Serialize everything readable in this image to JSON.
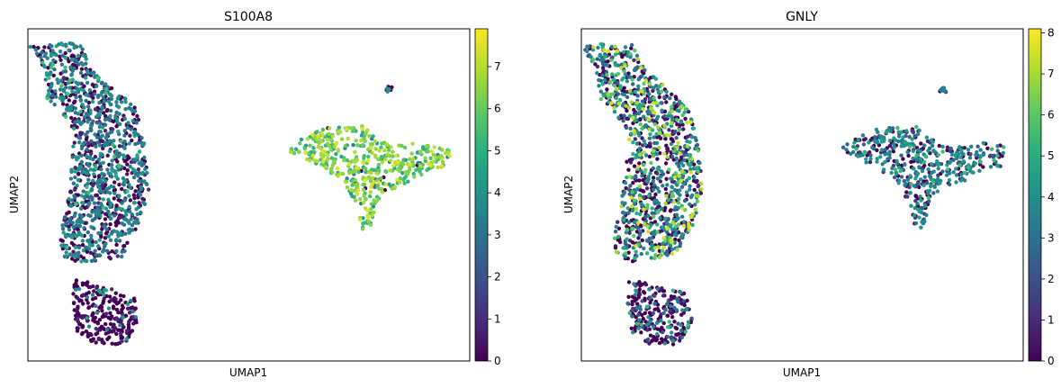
{
  "chart_data": [
    {
      "type": "scatter",
      "title": "S100A8",
      "xlabel": "UMAP1",
      "ylabel": "UMAP2",
      "colormap": "viridis",
      "color_range": [
        0,
        7.9
      ],
      "colorbar_ticks": [
        "0",
        "1",
        "2",
        "3",
        "4",
        "5",
        "6",
        "7"
      ],
      "grid": false,
      "clusters": [
        {
          "name": "top-left",
          "values": [
            0,
            0.5,
            1,
            3,
            3.5,
            4,
            4.5,
            5.5
          ],
          "weights": [
            30,
            8,
            5,
            20,
            20,
            10,
            5,
            2
          ]
        },
        {
          "name": "bottom-left",
          "values": [
            0,
            0.5,
            1,
            3.5,
            4.5
          ],
          "weights": [
            75,
            10,
            5,
            6,
            4
          ]
        },
        {
          "name": "right",
          "values": [
            4.5,
            5,
            5.5,
            6,
            6.5,
            7,
            7.5,
            3.5,
            0
          ],
          "weights": [
            8,
            10,
            14,
            18,
            20,
            15,
            8,
            5,
            2
          ]
        },
        {
          "name": "small",
          "values": [
            0,
            4
          ],
          "weights": [
            60,
            40
          ]
        }
      ]
    },
    {
      "type": "scatter",
      "title": "GNLY",
      "xlabel": "UMAP1",
      "ylabel": "UMAP2",
      "colormap": "viridis",
      "color_range": [
        0,
        8.1
      ],
      "colorbar_ticks": [
        "0",
        "1",
        "2",
        "3",
        "4",
        "5",
        "6",
        "7",
        "8"
      ],
      "grid": false,
      "clusters": [
        {
          "name": "top-left",
          "values": [
            0,
            0.5,
            1,
            2.5,
            3.5,
            4,
            5,
            6,
            7,
            7.5
          ],
          "weights": [
            30,
            5,
            5,
            10,
            15,
            10,
            8,
            7,
            5,
            5
          ]
        },
        {
          "name": "bottom-left",
          "values": [
            0,
            0.5,
            1,
            2,
            3,
            4,
            5.5
          ],
          "weights": [
            55,
            6,
            5,
            6,
            12,
            12,
            4
          ]
        },
        {
          "name": "right",
          "values": [
            0,
            0.5,
            1.5,
            2.5,
            3.5,
            4,
            4.5,
            5.5
          ],
          "weights": [
            20,
            8,
            8,
            12,
            22,
            15,
            10,
            5
          ]
        },
        {
          "name": "small",
          "values": [
            0,
            3.5
          ],
          "weights": [
            50,
            50
          ]
        }
      ]
    }
  ]
}
